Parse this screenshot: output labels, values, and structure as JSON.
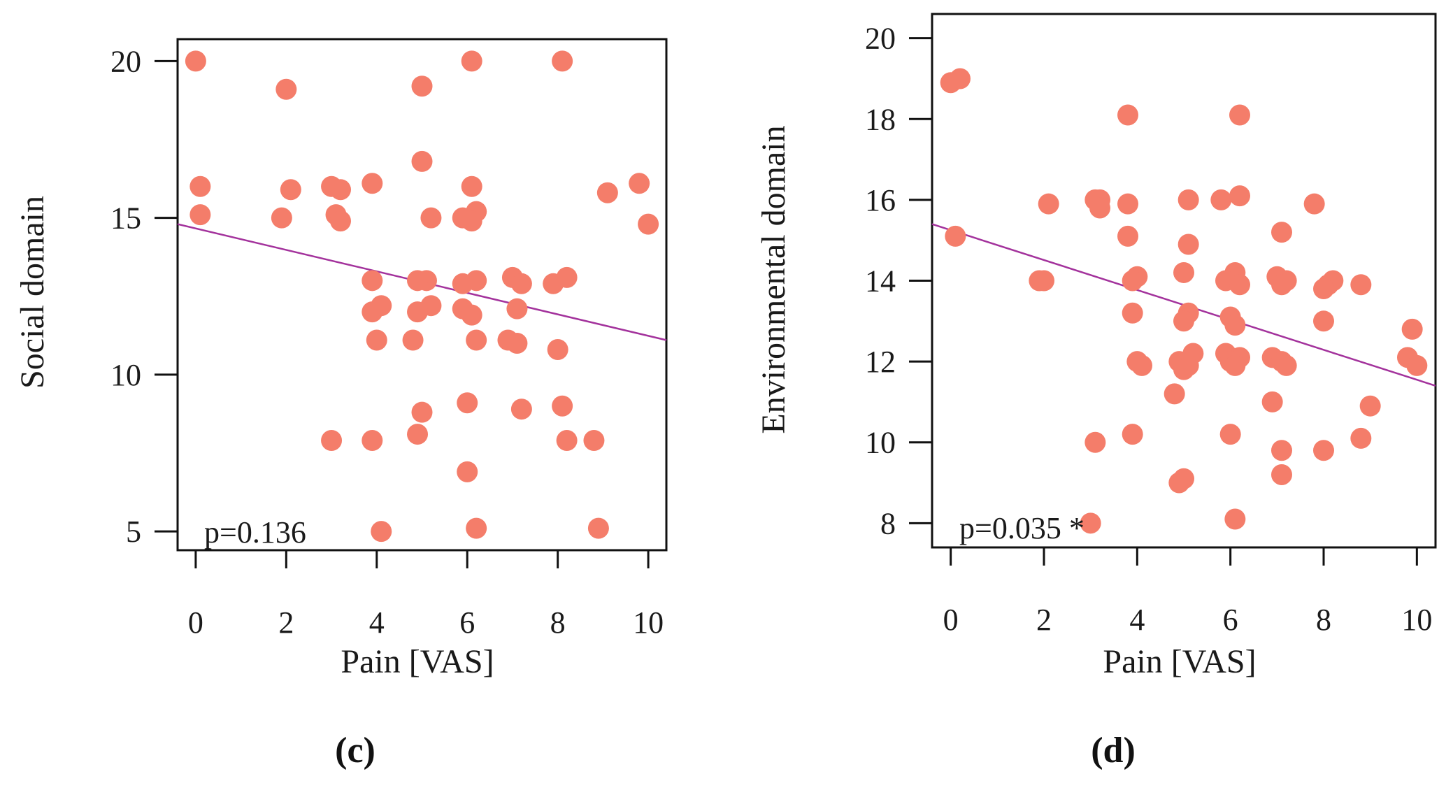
{
  "figure": {
    "colors": {
      "point": "#F47D6A",
      "trend": "#A3329C",
      "axis": "#111111"
    }
  },
  "chart_data": [
    {
      "type": "scatter",
      "panel": "c",
      "caption": "(c)",
      "xlabel": "Pain [VAS]",
      "ylabel": "Social domain",
      "xlim": [
        -0.4,
        10.4
      ],
      "ylim": [
        4.4,
        20.7
      ],
      "xticks": [
        "0",
        "2",
        "4",
        "6",
        "8",
        "10"
      ],
      "xtick_values": [
        0,
        2,
        4,
        6,
        8,
        10
      ],
      "yticks": [
        "5",
        "10",
        "15",
        "20"
      ],
      "ytick_values": [
        5,
        10,
        15,
        20
      ],
      "annotation": "p=0.136",
      "trendline": {
        "x": [
          -0.4,
          10.4
        ],
        "y": [
          14.8,
          11.1
        ]
      },
      "points": [
        [
          0,
          20
        ],
        [
          0.1,
          16
        ],
        [
          0.1,
          15.1
        ],
        [
          2,
          19.1
        ],
        [
          2.1,
          15.9
        ],
        [
          1.9,
          15
        ],
        [
          3,
          16
        ],
        [
          3.2,
          15.9
        ],
        [
          3.1,
          15.1
        ],
        [
          3.2,
          14.9
        ],
        [
          3,
          7.9
        ],
        [
          3.9,
          16.1
        ],
        [
          3.9,
          13
        ],
        [
          4.1,
          12.2
        ],
        [
          3.9,
          12
        ],
        [
          4,
          11.1
        ],
        [
          3.9,
          7.9
        ],
        [
          4.1,
          5
        ],
        [
          5,
          19.2
        ],
        [
          5,
          16.8
        ],
        [
          5.2,
          15
        ],
        [
          5.1,
          13
        ],
        [
          4.9,
          13
        ],
        [
          5.2,
          12.2
        ],
        [
          4.9,
          12
        ],
        [
          4.8,
          11.1
        ],
        [
          5,
          8.8
        ],
        [
          4.9,
          8.1
        ],
        [
          6.1,
          20
        ],
        [
          6.1,
          16
        ],
        [
          5.9,
          15
        ],
        [
          6.2,
          15.2
        ],
        [
          6.1,
          14.9
        ],
        [
          6.2,
          13
        ],
        [
          5.9,
          12.9
        ],
        [
          5.9,
          12.1
        ],
        [
          6.1,
          11.9
        ],
        [
          6.2,
          11.1
        ],
        [
          6,
          9.1
        ],
        [
          6,
          6.9
        ],
        [
          6.2,
          5.1
        ],
        [
          7,
          13.1
        ],
        [
          7.2,
          12.9
        ],
        [
          7.1,
          12.1
        ],
        [
          6.9,
          11.1
        ],
        [
          7.1,
          11
        ],
        [
          7.2,
          8.9
        ],
        [
          8.1,
          20
        ],
        [
          7.9,
          12.9
        ],
        [
          8.2,
          13.1
        ],
        [
          8,
          10.8
        ],
        [
          8.1,
          9
        ],
        [
          8.2,
          7.9
        ],
        [
          9.1,
          15.8
        ],
        [
          8.8,
          7.9
        ],
        [
          8.9,
          5.1
        ],
        [
          9.8,
          16.1
        ],
        [
          10,
          14.8
        ]
      ]
    },
    {
      "type": "scatter",
      "panel": "d",
      "caption": "(d)",
      "xlabel": "Pain [VAS]",
      "ylabel": "Environmental domain",
      "xlim": [
        -0.4,
        10.4
      ],
      "ylim": [
        7.4,
        20.6
      ],
      "xticks": [
        "0",
        "2",
        "4",
        "6",
        "8",
        "10"
      ],
      "xtick_values": [
        0,
        2,
        4,
        6,
        8,
        10
      ],
      "yticks": [
        "8",
        "10",
        "12",
        "14",
        "16",
        "18",
        "20"
      ],
      "ytick_values": [
        8,
        10,
        12,
        14,
        16,
        18,
        20
      ],
      "annotation": "p=0.035 *",
      "trendline": {
        "x": [
          -0.4,
          10.4
        ],
        "y": [
          15.4,
          11.4
        ]
      },
      "points": [
        [
          0,
          18.9
        ],
        [
          0.2,
          19
        ],
        [
          0.1,
          15.1
        ],
        [
          2.1,
          15.9
        ],
        [
          2,
          14
        ],
        [
          1.9,
          14
        ],
        [
          3.1,
          16
        ],
        [
          3.2,
          16
        ],
        [
          3.2,
          15.8
        ],
        [
          3.1,
          10
        ],
        [
          3,
          8
        ],
        [
          3.8,
          18.1
        ],
        [
          3.8,
          15.9
        ],
        [
          3.8,
          15.1
        ],
        [
          4,
          14.1
        ],
        [
          3.9,
          14
        ],
        [
          3.9,
          13.2
        ],
        [
          4,
          12
        ],
        [
          4.1,
          11.9
        ],
        [
          3.9,
          10.2
        ],
        [
          5.1,
          16
        ],
        [
          5.1,
          14.9
        ],
        [
          5,
          14.2
        ],
        [
          5.1,
          13.2
        ],
        [
          5,
          13
        ],
        [
          5.2,
          12.2
        ],
        [
          4.9,
          12
        ],
        [
          5.1,
          11.9
        ],
        [
          5,
          11.8
        ],
        [
          4.8,
          11.2
        ],
        [
          4.9,
          9
        ],
        [
          5,
          9.1
        ],
        [
          6.2,
          18.1
        ],
        [
          5.8,
          16
        ],
        [
          6.2,
          16.1
        ],
        [
          6.1,
          14.2
        ],
        [
          5.9,
          14
        ],
        [
          6.2,
          13.9
        ],
        [
          6,
          13.1
        ],
        [
          6.1,
          12.9
        ],
        [
          5.9,
          12.2
        ],
        [
          6.2,
          12.1
        ],
        [
          6,
          12
        ],
        [
          6.1,
          11.9
        ],
        [
          6,
          10.2
        ],
        [
          6.1,
          8.1
        ],
        [
          7.1,
          15.2
        ],
        [
          7,
          14.1
        ],
        [
          7.2,
          14
        ],
        [
          7.1,
          13.9
        ],
        [
          6.9,
          12.1
        ],
        [
          7.1,
          12
        ],
        [
          7.2,
          11.9
        ],
        [
          6.9,
          11
        ],
        [
          7.1,
          9.8
        ],
        [
          7.1,
          9.2
        ],
        [
          7.8,
          15.9
        ],
        [
          8.2,
          14
        ],
        [
          8.1,
          13.9
        ],
        [
          8,
          13.8
        ],
        [
          8,
          13
        ],
        [
          8,
          9.8
        ],
        [
          8.8,
          13.9
        ],
        [
          9,
          10.9
        ],
        [
          8.8,
          10.1
        ],
        [
          9.9,
          12.8
        ],
        [
          9.8,
          12.1
        ],
        [
          10,
          11.9
        ]
      ]
    }
  ]
}
